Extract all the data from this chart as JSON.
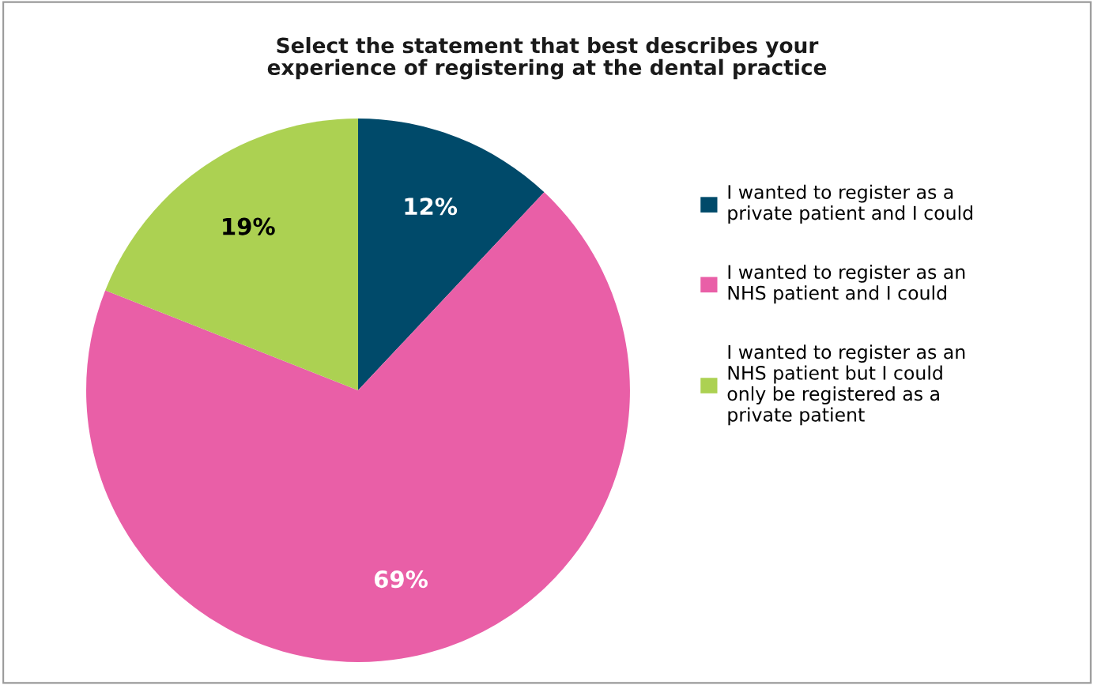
{
  "chart_data": {
    "type": "pie",
    "title": "Select the statement that best describes your\nexperience of registering at the dental practice",
    "categories": [
      "I wanted to register as a\nprivate patient and I could",
      "I wanted to register as an\nNHS patient and I could",
      "I wanted to register as an\nNHS patient but I could\nonly be registered as a\nprivate patient"
    ],
    "values": [
      12,
      69,
      19
    ],
    "colors": [
      "#004a6a",
      "#e95fa7",
      "#acd152"
    ],
    "value_labels": [
      "12%",
      "69%",
      "19%"
    ],
    "legend": "right"
  }
}
